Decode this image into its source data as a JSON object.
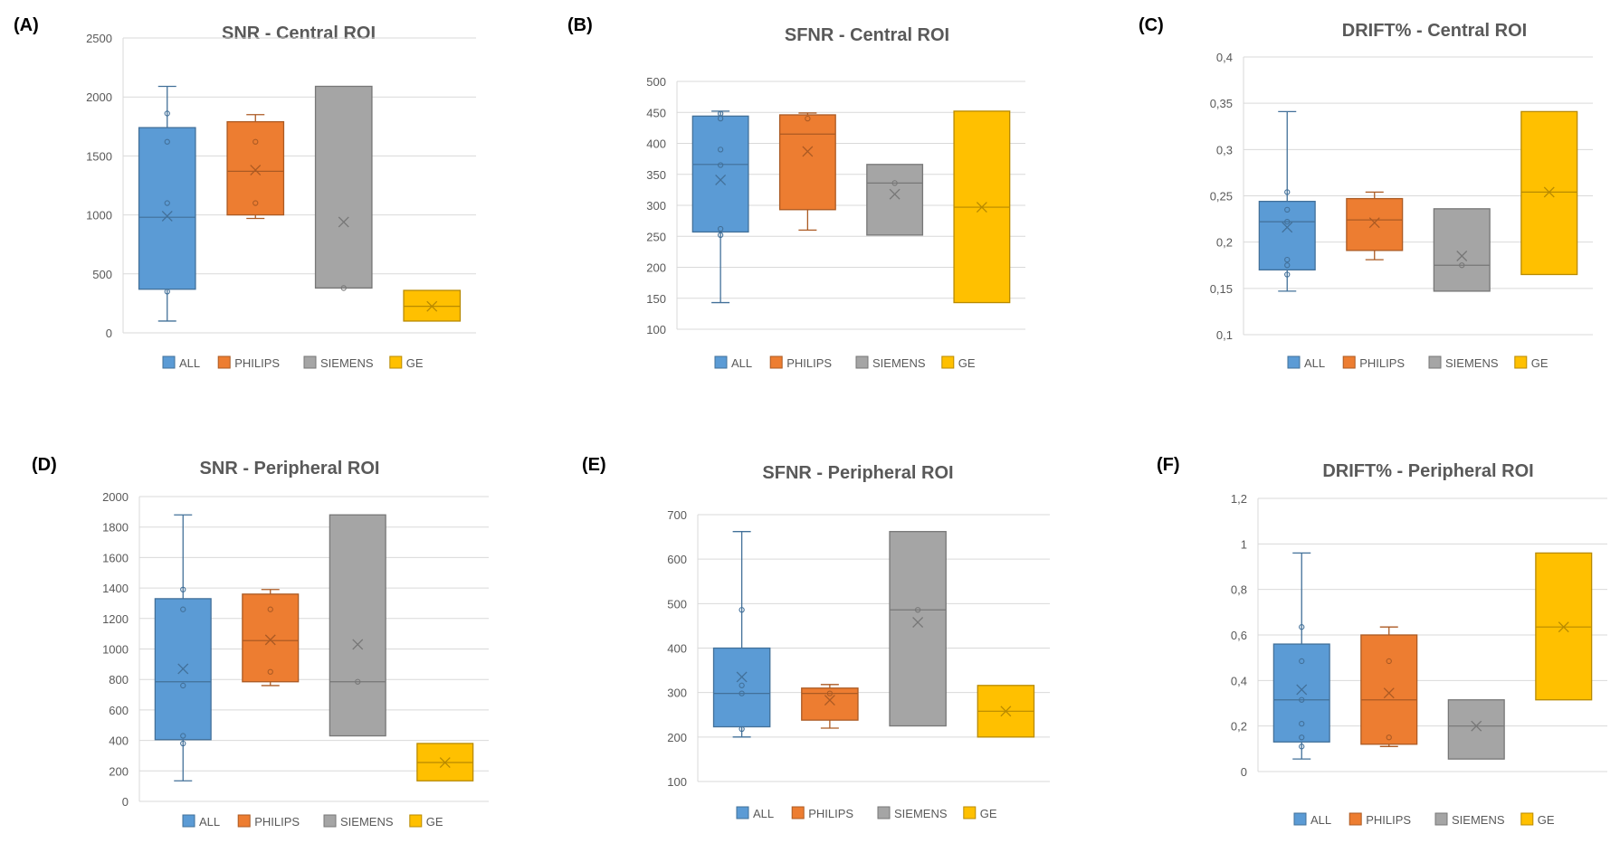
{
  "colors": {
    "ALL": "#5b9bd5",
    "PHILIPS": "#ed7d31",
    "SIEMENS": "#a5a5a5",
    "GE": "#ffc000"
  },
  "legend": [
    "ALL",
    "PHILIPS",
    "SIEMENS",
    "GE"
  ],
  "chart_data": [
    {
      "type": "box",
      "panel_label": "(A)",
      "title": "SNR - Central ROI",
      "ylim": [
        0,
        2500
      ],
      "yticks": [
        0,
        500,
        1000,
        1500,
        2000,
        2500
      ],
      "ytick_labels": [
        "0",
        "500",
        "1000",
        "1500",
        "2000",
        "2500"
      ],
      "categories": [
        "ALL",
        "PHILIPS",
        "SIEMENS",
        "GE"
      ],
      "legend_position": "bottom",
      "grid": true,
      "series": [
        {
          "name": "ALL",
          "min": 100,
          "q1": 370,
          "median": 980,
          "q3": 1740,
          "max": 2090,
          "mean": 990,
          "points": [
            350,
            1100,
            1620,
            1860
          ]
        },
        {
          "name": "PHILIPS",
          "min": 970,
          "q1": 1000,
          "median": 1370,
          "q3": 1790,
          "max": 1850,
          "mean": 1380,
          "points": [
            1100,
            1620
          ]
        },
        {
          "name": "SIEMENS",
          "min": 380,
          "q1": 380,
          "median": 380,
          "q3": 2090,
          "max": 2090,
          "mean": 940,
          "points": [
            380
          ]
        },
        {
          "name": "GE",
          "min": 100,
          "q1": 100,
          "median": 225,
          "q3": 360,
          "max": 360,
          "mean": 225,
          "points": []
        }
      ]
    },
    {
      "type": "box",
      "panel_label": "(B)",
      "title": "SFNR - Central ROI",
      "ylim": [
        100,
        500
      ],
      "yticks": [
        100,
        150,
        200,
        250,
        300,
        350,
        400,
        450,
        500
      ],
      "ytick_labels": [
        "100",
        "150",
        "200",
        "250",
        "300",
        "350",
        "400",
        "450",
        "500"
      ],
      "categories": [
        "ALL",
        "PHILIPS",
        "SIEMENS",
        "GE"
      ],
      "legend_position": "bottom",
      "grid": true,
      "series": [
        {
          "name": "ALL",
          "min": 143,
          "q1": 257,
          "median": 366,
          "q3": 444,
          "max": 452,
          "mean": 341,
          "points": [
            252,
            262,
            365,
            390,
            440,
            448
          ]
        },
        {
          "name": "PHILIPS",
          "min": 260,
          "q1": 293,
          "median": 415,
          "q3": 446,
          "max": 449,
          "mean": 387,
          "points": [
            440
          ]
        },
        {
          "name": "SIEMENS",
          "min": 252,
          "q1": 252,
          "median": 336,
          "q3": 366,
          "max": 366,
          "mean": 318,
          "points": [
            336
          ]
        },
        {
          "name": "GE",
          "min": 143,
          "q1": 143,
          "median": 297,
          "q3": 452,
          "max": 452,
          "mean": 297,
          "points": []
        }
      ]
    },
    {
      "type": "box",
      "panel_label": "(C)",
      "title": "DRIFT% - Central ROI",
      "ylim": [
        0.1,
        0.4
      ],
      "yticks": [
        0.1,
        0.15,
        0.2,
        0.25,
        0.3,
        0.35,
        0.4
      ],
      "ytick_labels": [
        "0,1",
        "0,15",
        "0,2",
        "0,25",
        "0,3",
        "0,35",
        "0,4"
      ],
      "categories": [
        "ALL",
        "PHILIPS",
        "SIEMENS",
        "GE"
      ],
      "legend_position": "bottom",
      "grid": true,
      "series": [
        {
          "name": "ALL",
          "min": 0.147,
          "q1": 0.17,
          "median": 0.222,
          "q3": 0.244,
          "max": 0.341,
          "mean": 0.216,
          "points": [
            0.165,
            0.175,
            0.181,
            0.222,
            0.235,
            0.254
          ]
        },
        {
          "name": "PHILIPS",
          "min": 0.181,
          "q1": 0.191,
          "median": 0.224,
          "q3": 0.247,
          "max": 0.254,
          "mean": 0.221,
          "points": []
        },
        {
          "name": "SIEMENS",
          "min": 0.147,
          "q1": 0.147,
          "median": 0.175,
          "q3": 0.236,
          "max": 0.236,
          "mean": 0.185,
          "points": [
            0.175
          ]
        },
        {
          "name": "GE",
          "min": 0.165,
          "q1": 0.165,
          "median": 0.254,
          "q3": 0.341,
          "max": 0.341,
          "mean": 0.254,
          "points": []
        }
      ]
    },
    {
      "type": "box",
      "panel_label": "(D)",
      "title": "SNR - Peripheral ROI",
      "ylim": [
        0,
        2000
      ],
      "yticks": [
        0,
        200,
        400,
        600,
        800,
        1000,
        1200,
        1400,
        1600,
        1800,
        2000
      ],
      "ytick_labels": [
        "0",
        "200",
        "400",
        "600",
        "800",
        "1000",
        "1200",
        "1400",
        "1600",
        "1800",
        "2000"
      ],
      "categories": [
        "ALL",
        "PHILIPS",
        "SIEMENS",
        "GE"
      ],
      "legend_position": "bottom",
      "grid": true,
      "series": [
        {
          "name": "ALL",
          "min": 135,
          "q1": 405,
          "median": 785,
          "q3": 1330,
          "max": 1880,
          "mean": 870,
          "points": [
            380,
            430,
            760,
            1260,
            1390
          ]
        },
        {
          "name": "PHILIPS",
          "min": 760,
          "q1": 785,
          "median": 1055,
          "q3": 1360,
          "max": 1390,
          "mean": 1060,
          "points": [
            850,
            1260
          ]
        },
        {
          "name": "SIEMENS",
          "min": 430,
          "q1": 430,
          "median": 785,
          "q3": 1880,
          "max": 1880,
          "mean": 1030,
          "points": [
            785
          ]
        },
        {
          "name": "GE",
          "min": 135,
          "q1": 135,
          "median": 255,
          "q3": 380,
          "max": 380,
          "mean": 255,
          "points": []
        }
      ]
    },
    {
      "type": "box",
      "panel_label": "(E)",
      "title": "SFNR - Peripheral ROI",
      "ylim": [
        100,
        700
      ],
      "yticks": [
        100,
        200,
        300,
        400,
        500,
        600,
        700
      ],
      "ytick_labels": [
        "100",
        "200",
        "300",
        "400",
        "500",
        "600",
        "700"
      ],
      "categories": [
        "ALL",
        "PHILIPS",
        "SIEMENS",
        "GE"
      ],
      "legend_position": "bottom",
      "grid": true,
      "series": [
        {
          "name": "ALL",
          "min": 200,
          "q1": 223,
          "median": 298,
          "q3": 400,
          "max": 662,
          "mean": 335,
          "points": [
            218,
            298,
            316,
            486
          ]
        },
        {
          "name": "PHILIPS",
          "min": 220,
          "q1": 238,
          "median": 298,
          "q3": 310,
          "max": 318,
          "mean": 283,
          "points": [
            298
          ]
        },
        {
          "name": "SIEMENS",
          "min": 225,
          "q1": 225,
          "median": 486,
          "q3": 662,
          "max": 662,
          "mean": 458,
          "points": [
            486
          ]
        },
        {
          "name": "GE",
          "min": 200,
          "q1": 200,
          "median": 258,
          "q3": 316,
          "max": 316,
          "mean": 258,
          "points": []
        }
      ]
    },
    {
      "type": "box",
      "panel_label": "(F)",
      "title": "DRIFT% - Peripheral ROI",
      "ylim": [
        0,
        1.2
      ],
      "yticks": [
        0,
        0.2,
        0.4,
        0.6,
        0.8,
        1,
        1.2
      ],
      "ytick_labels": [
        "0",
        "0,2",
        "0,4",
        "0,6",
        "0,8",
        "1",
        "1,2"
      ],
      "categories": [
        "ALL",
        "PHILIPS",
        "SIEMENS",
        "GE"
      ],
      "legend_position": "bottom",
      "grid": true,
      "series": [
        {
          "name": "ALL",
          "min": 0.055,
          "q1": 0.13,
          "median": 0.315,
          "q3": 0.56,
          "max": 0.96,
          "mean": 0.36,
          "points": [
            0.11,
            0.15,
            0.21,
            0.315,
            0.485,
            0.635
          ]
        },
        {
          "name": "PHILIPS",
          "min": 0.11,
          "q1": 0.12,
          "median": 0.315,
          "q3": 0.6,
          "max": 0.635,
          "mean": 0.345,
          "points": [
            0.15,
            0.485
          ]
        },
        {
          "name": "SIEMENS",
          "min": 0.055,
          "q1": 0.055,
          "median": 0.2,
          "q3": 0.315,
          "max": 0.315,
          "mean": 0.2,
          "points": []
        },
        {
          "name": "GE",
          "min": 0.315,
          "q1": 0.315,
          "median": 0.635,
          "q3": 0.96,
          "max": 0.96,
          "mean": 0.635,
          "points": []
        }
      ]
    }
  ]
}
